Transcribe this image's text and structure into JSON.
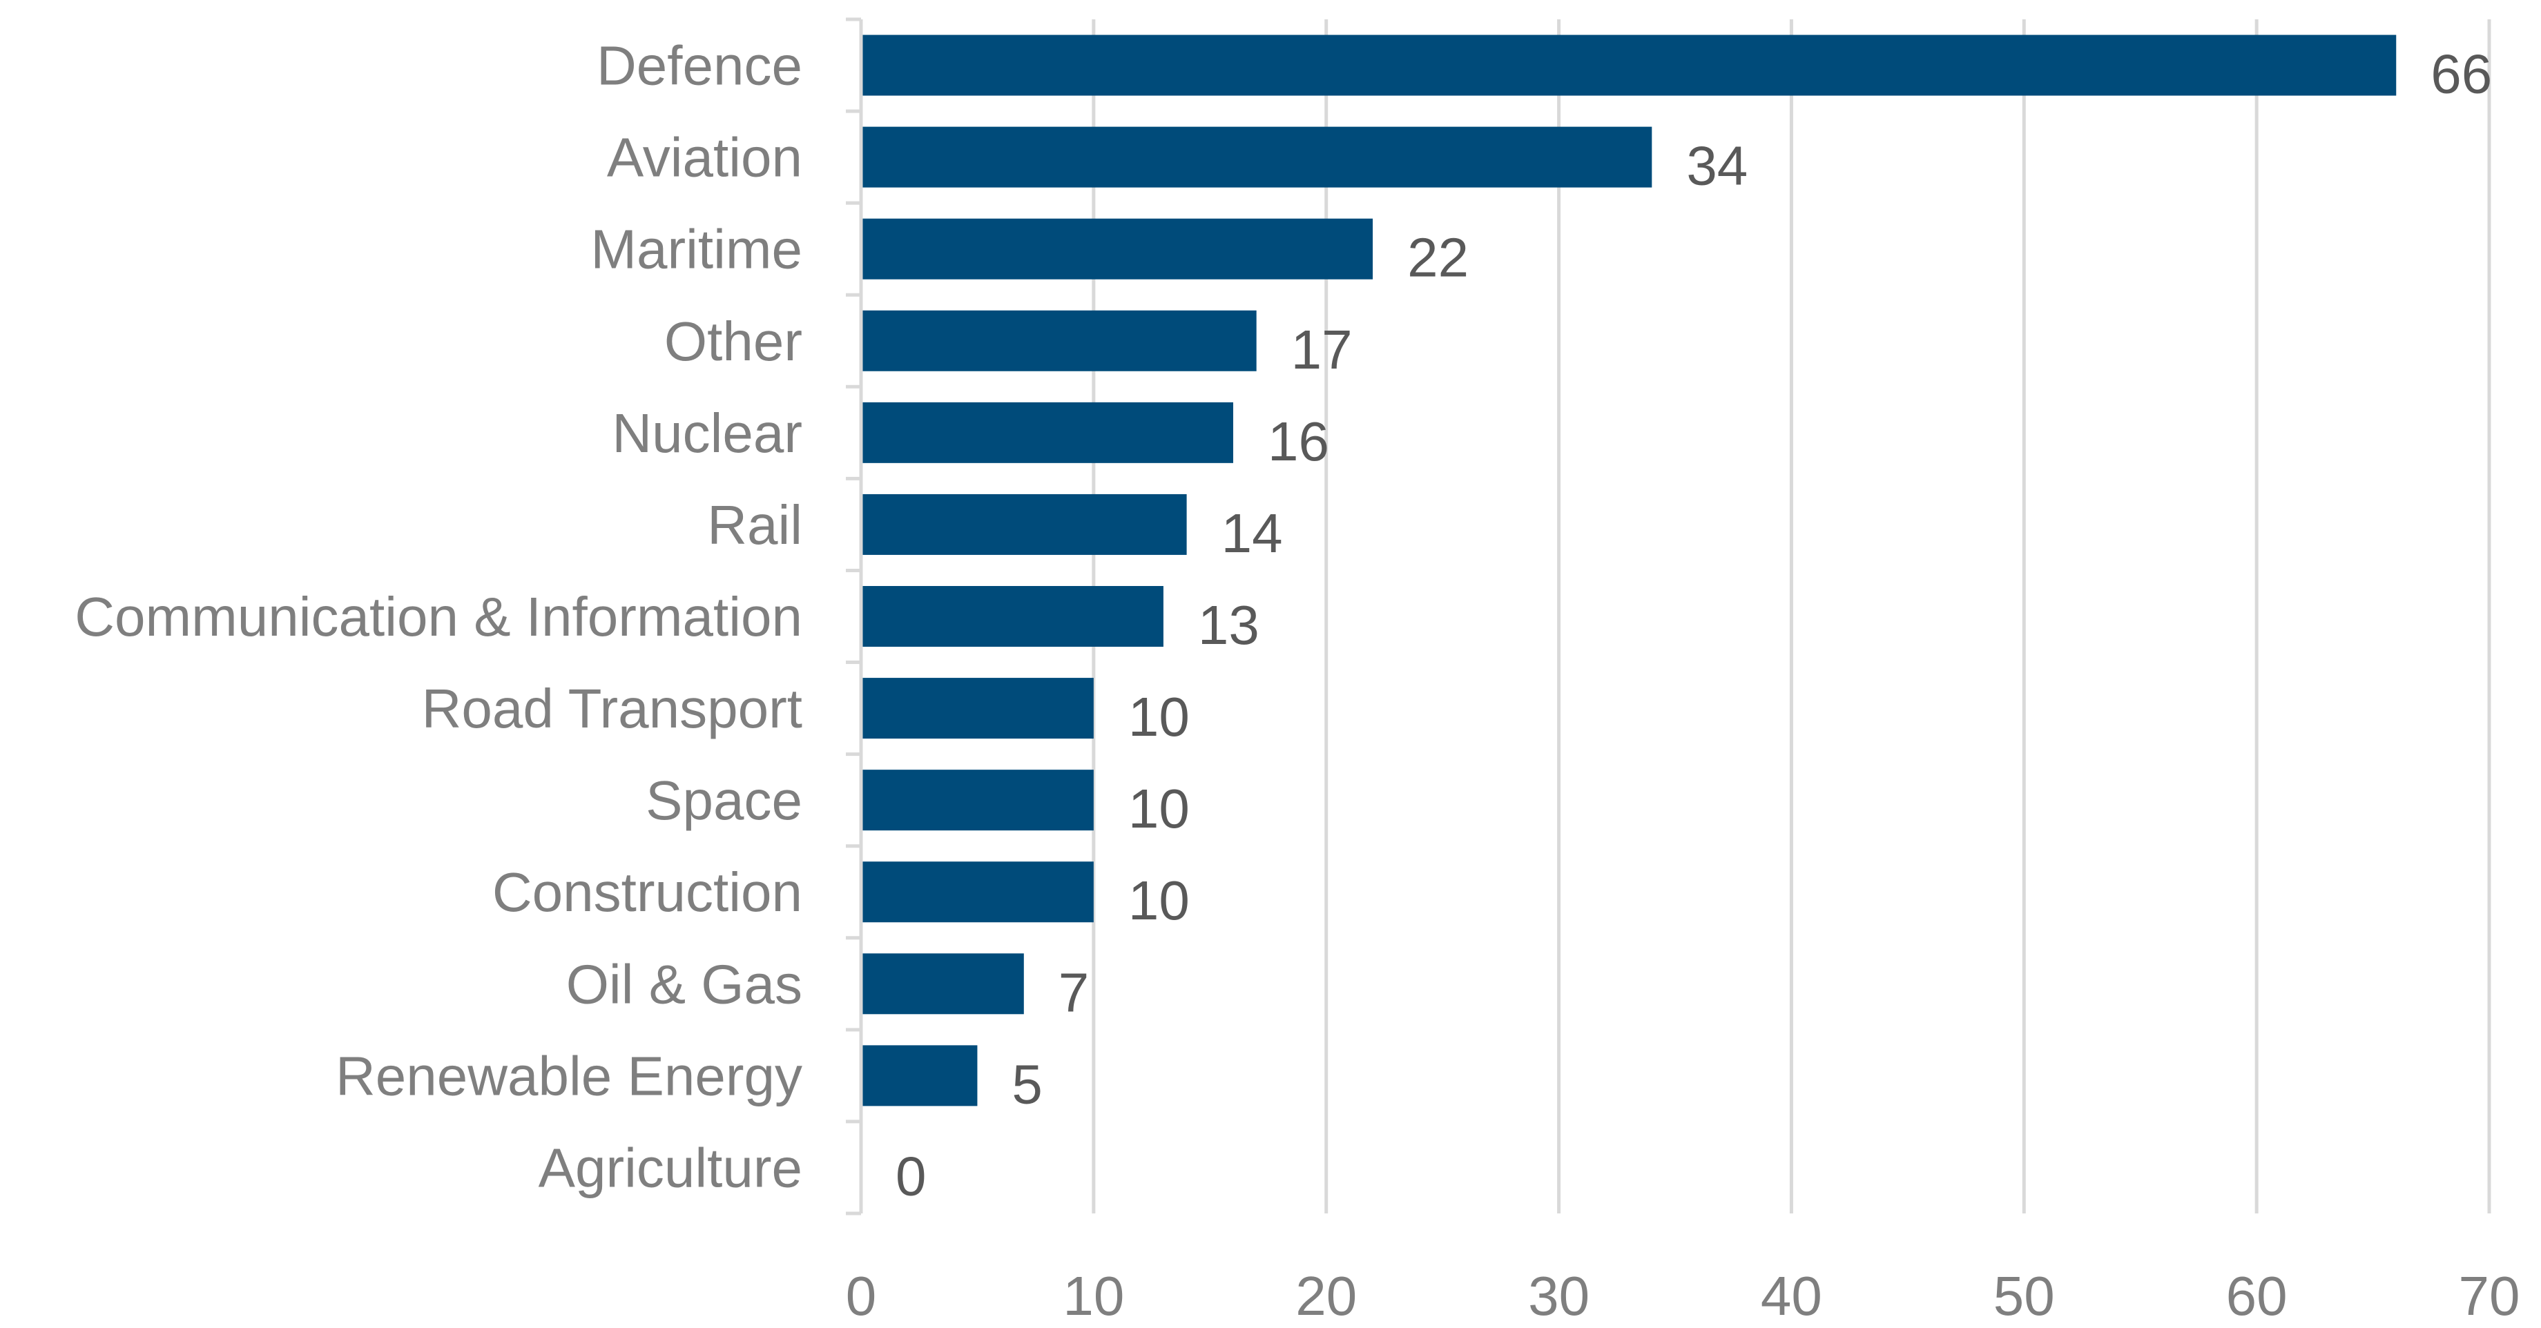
{
  "chart_data": {
    "type": "bar",
    "orientation": "horizontal",
    "title": "",
    "xlabel": "",
    "ylabel": "",
    "categories": [
      "Defence",
      "Aviation",
      "Maritime",
      "Other",
      "Nuclear",
      "Rail",
      "Communication & Information",
      "Road Transport",
      "Space",
      "Construction",
      "Oil & Gas",
      "Renewable Energy",
      "Agriculture"
    ],
    "values": [
      66,
      34,
      22,
      17,
      16,
      14,
      13,
      10,
      10,
      10,
      7,
      5,
      0
    ],
    "xlim": [
      0,
      70
    ],
    "x_ticks": [
      0,
      10,
      20,
      30,
      40,
      50,
      60,
      70
    ],
    "grid": "vertical",
    "legend": "none",
    "colors": {
      "bar": "#004b7a",
      "grid": "#d9d9d9",
      "category_text": "#7f7f7f",
      "value_text": "#595959"
    }
  }
}
